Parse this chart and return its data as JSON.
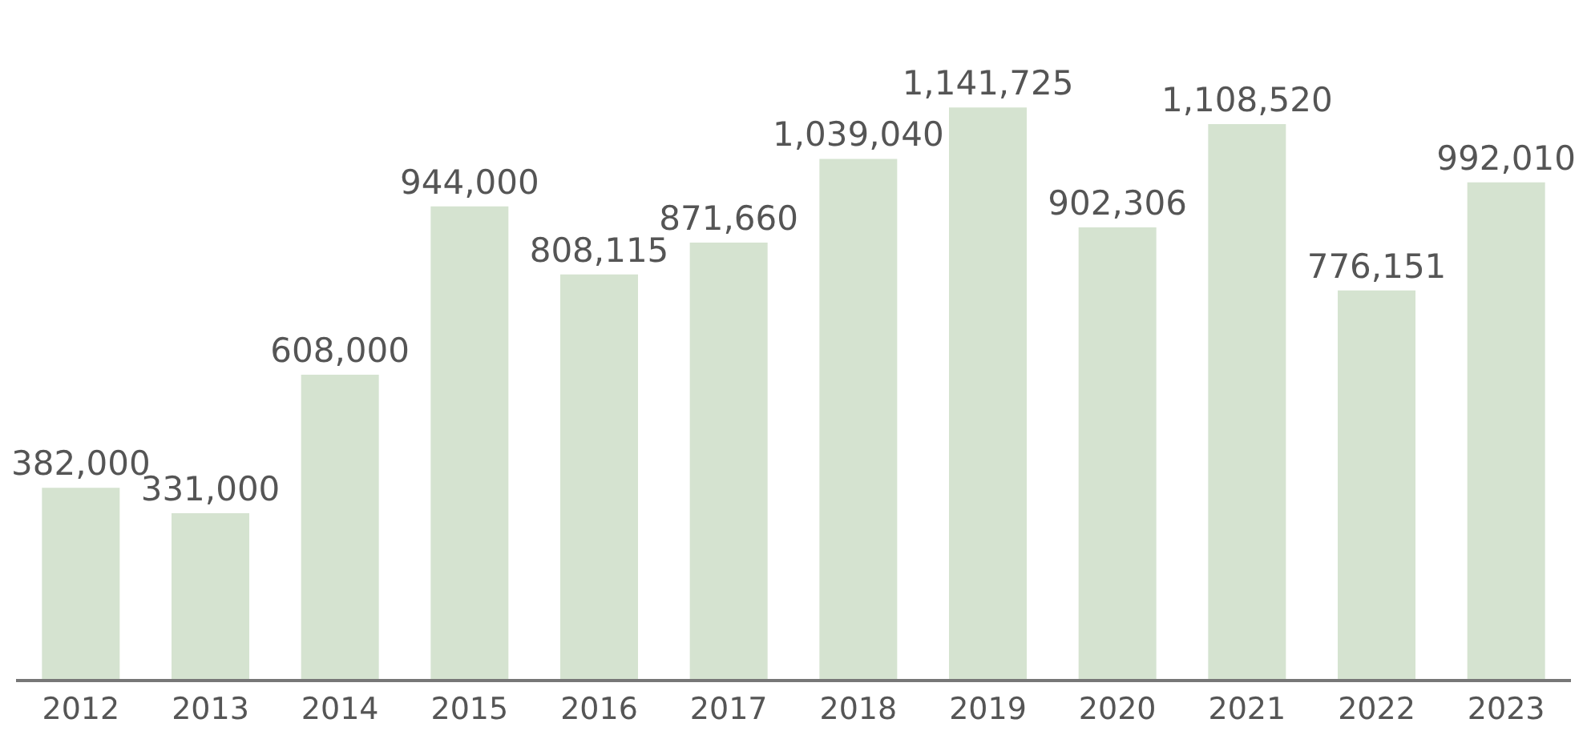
{
  "chart_data": {
    "type": "bar",
    "categories": [
      "2012",
      "2013",
      "2014",
      "2015",
      "2016",
      "2017",
      "2018",
      "2019",
      "2020",
      "2021",
      "2022",
      "2023"
    ],
    "values": [
      382000,
      331000,
      608000,
      944000,
      808115,
      871660,
      1039040,
      1141725,
      902306,
      1108520,
      776151,
      992010
    ],
    "value_labels": [
      "382,000",
      "331,000",
      "608,000",
      "944,000",
      "808,115",
      "871,660",
      "1,039,040",
      "1,141,725",
      "902,306",
      "1,108,520",
      "776,151",
      "992,010"
    ],
    "color": "#d5e3d0",
    "tick_labels": "x"
  }
}
